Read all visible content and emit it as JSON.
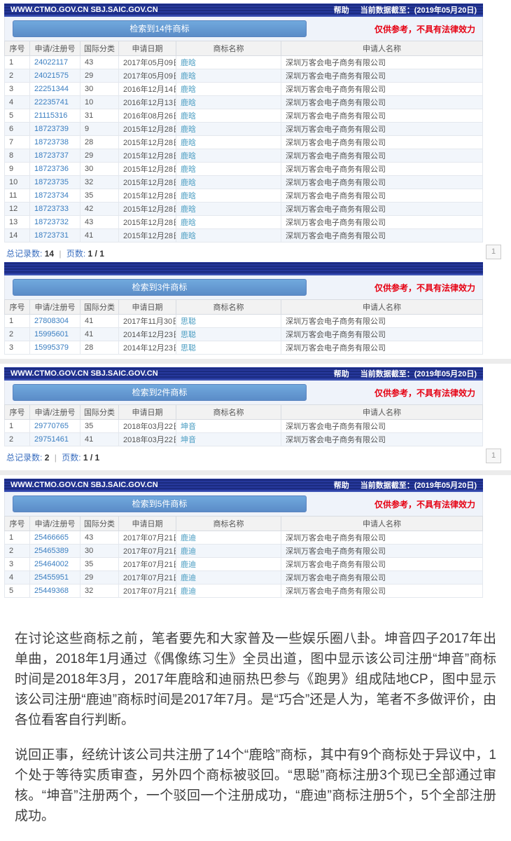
{
  "topbar": {
    "domains": "WWW.CTMO.GOV.CN SBJ.SAIC.GOV.CN",
    "help_label": "帮助",
    "data_cutoff": "当前数据截至：(2019年05月20日)"
  },
  "disclaimer": "仅供参考，不具有法律效力",
  "columns": [
    "序号",
    "申请/注册号",
    "国际分类",
    "申请日期",
    "商标名称",
    "申请人名称"
  ],
  "footer_labels": {
    "total": "总记录数:",
    "pages": "页数:"
  },
  "page_button": "1",
  "colors": {
    "topbar_bg": "#1e2f8a",
    "button_bg": "#6495cd",
    "disclaimer_red": "#e60012",
    "link_blue": "#3a7ec1",
    "trademark_teal": "#4a9dc2"
  },
  "blocks": [
    {
      "has_topbar": true,
      "gap_before": false,
      "count_label": "检索到14件商标",
      "footer": {
        "total": "14",
        "pages": "1 / 1"
      },
      "rows": [
        [
          "1",
          "24022117",
          "43",
          "2017年05月09日",
          "鹿晗",
          "深圳万客会电子商务有限公司"
        ],
        [
          "2",
          "24021575",
          "29",
          "2017年05月09日",
          "鹿晗",
          "深圳万客会电子商务有限公司"
        ],
        [
          "3",
          "22251344",
          "30",
          "2016年12月14日",
          "鹿晗",
          "深圳万客会电子商务有限公司"
        ],
        [
          "4",
          "22235741",
          "10",
          "2016年12月13日",
          "鹿晗",
          "深圳万客会电子商务有限公司"
        ],
        [
          "5",
          "21115316",
          "31",
          "2016年08月26日",
          "鹿晗",
          "深圳万客会电子商务有限公司"
        ],
        [
          "6",
          "18723739",
          "9",
          "2015年12月28日",
          "鹿晗",
          "深圳万客会电子商务有限公司"
        ],
        [
          "7",
          "18723738",
          "28",
          "2015年12月28日",
          "鹿晗",
          "深圳万客会电子商务有限公司"
        ],
        [
          "8",
          "18723737",
          "29",
          "2015年12月28日",
          "鹿晗",
          "深圳万客会电子商务有限公司"
        ],
        [
          "9",
          "18723736",
          "30",
          "2015年12月28日",
          "鹿晗",
          "深圳万客会电子商务有限公司"
        ],
        [
          "10",
          "18723735",
          "32",
          "2015年12月28日",
          "鹿晗",
          "深圳万客会电子商务有限公司"
        ],
        [
          "11",
          "18723734",
          "35",
          "2015年12月28日",
          "鹿晗",
          "深圳万客会电子商务有限公司"
        ],
        [
          "12",
          "18723733",
          "42",
          "2015年12月28日",
          "鹿晗",
          "深圳万客会电子商务有限公司"
        ],
        [
          "13",
          "18723732",
          "43",
          "2015年12月28日",
          "鹿晗",
          "深圳万客会电子商务有限公司"
        ],
        [
          "14",
          "18723731",
          "41",
          "2015年12月28日",
          "鹿晗",
          "深圳万客会电子商务有限公司"
        ]
      ]
    },
    {
      "has_topbar": false,
      "gap_before": false,
      "count_label": "检索到3件商标",
      "footer": null,
      "rows": [
        [
          "1",
          "27808304",
          "41",
          "2017年11月30日",
          "思聪",
          "深圳万客会电子商务有限公司"
        ],
        [
          "2",
          "15995601",
          "41",
          "2014年12月23日",
          "思聪",
          "深圳万客会电子商务有限公司"
        ],
        [
          "3",
          "15995379",
          "28",
          "2014年12月23日",
          "思聪",
          "深圳万客会电子商务有限公司"
        ]
      ]
    },
    {
      "has_topbar": true,
      "gap_before": true,
      "count_label": "检索到2件商标",
      "footer": {
        "total": "2",
        "pages": "1 / 1"
      },
      "rows": [
        [
          "1",
          "29770765",
          "35",
          "2018年03月22日",
          "坤音",
          "深圳万客会电子商务有限公司"
        ],
        [
          "2",
          "29751461",
          "41",
          "2018年03月22日",
          "坤音",
          "深圳万客会电子商务有限公司"
        ]
      ]
    },
    {
      "has_topbar": true,
      "gap_before": true,
      "count_label": "检索到5件商标",
      "footer": null,
      "rows": [
        [
          "1",
          "25466665",
          "43",
          "2017年07月21日",
          "鹿迪",
          "深圳万客会电子商务有限公司"
        ],
        [
          "2",
          "25465389",
          "30",
          "2017年07月21日",
          "鹿迪",
          "深圳万客会电子商务有限公司"
        ],
        [
          "3",
          "25464002",
          "35",
          "2017年07月21日",
          "鹿迪",
          "深圳万客会电子商务有限公司"
        ],
        [
          "4",
          "25455951",
          "29",
          "2017年07月21日",
          "鹿迪",
          "深圳万客会电子商务有限公司"
        ],
        [
          "5",
          "25449368",
          "32",
          "2017年07月21日",
          "鹿迪",
          "深圳万客会电子商务有限公司"
        ]
      ]
    }
  ],
  "article": {
    "paragraphs": [
      "在讨论这些商标之前，笔者要先和大家普及一些娱乐圈八卦。坤音四子2017年出单曲，2018年1月通过《偶像练习生》全员出道，图中显示该公司注册“坤音”商标时间是2018年3月，2017年鹿晗和迪丽热巴参与《跑男》组成陆地CP，图中显示该公司注册“鹿迪”商标时间是2017年7月。是“巧合”还是人为，笔者不多做评价，由各位看客自行判断。",
      "说回正事，经统计该公司共注册了14个“鹿晗”商标，其中有9个商标处于异议中，1个处于等待实质审查，另外四个商标被驳回。“思聪”商标注册3个现已全部通过审核。“坤音”注册两个，一个驳回一个注册成功，“鹿迪”商标注册5个，5个全部注册成功。"
    ]
  }
}
